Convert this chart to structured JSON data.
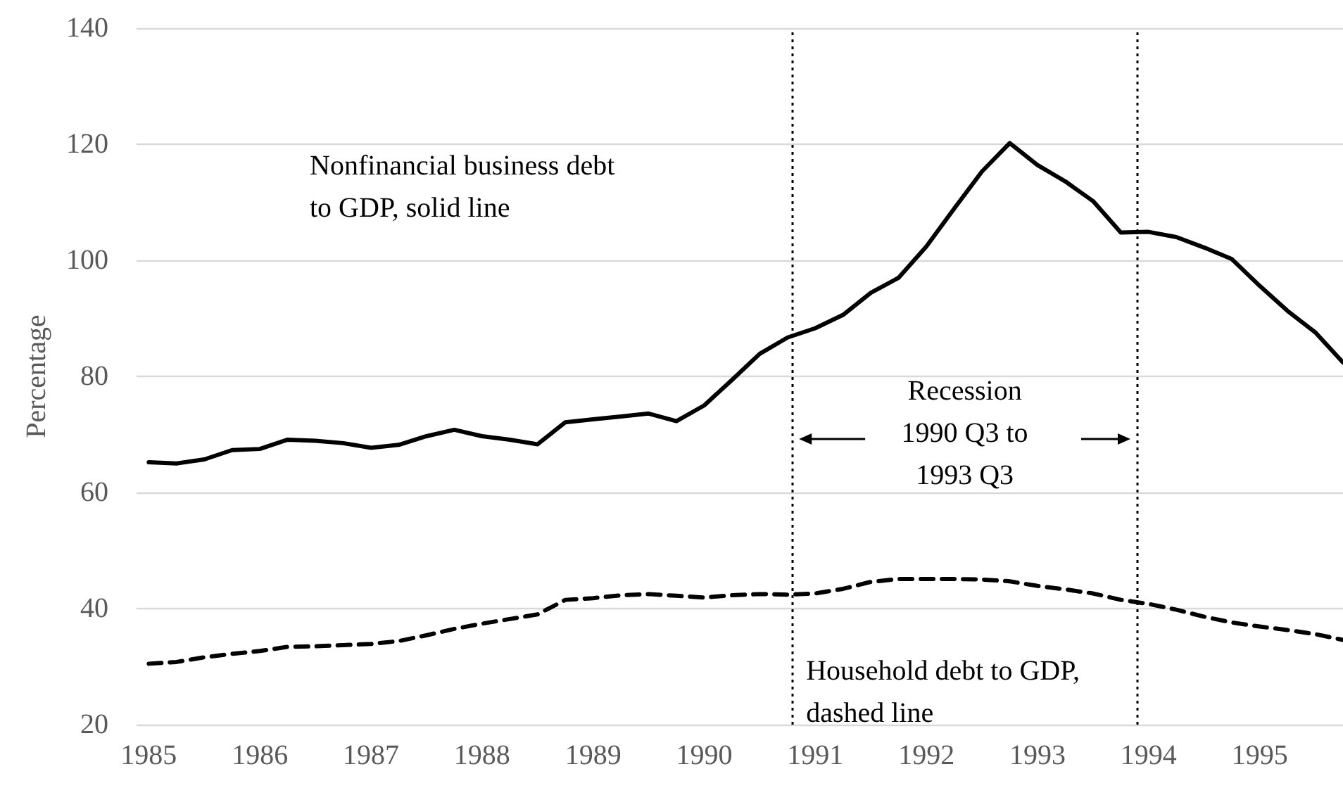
{
  "chart_data": {
    "type": "line",
    "ylabel": "Percentage",
    "x": [
      1985,
      1985.25,
      1985.5,
      1985.75,
      1986,
      1986.25,
      1986.5,
      1986.75,
      1987,
      1987.25,
      1987.5,
      1987.75,
      1988,
      1988.25,
      1988.5,
      1988.75,
      1989,
      1989.25,
      1989.5,
      1989.75,
      1990,
      1990.25,
      1990.5,
      1990.75,
      1991,
      1991.25,
      1991.5,
      1991.75,
      1992,
      1992.25,
      1992.5,
      1992.75,
      1993,
      1993.25,
      1993.5,
      1993.75,
      1994,
      1994.25,
      1994.5,
      1994.75,
      1995,
      1995.25,
      1995.5,
      1995.75
    ],
    "series": [
      {
        "color": "#000000",
        "line_style": "solid",
        "values": [
          65.2,
          65.0,
          65.7,
          67.3,
          67.5,
          69.1,
          68.9,
          68.5,
          67.7,
          68.2,
          69.7,
          70.8,
          69.7,
          69.1,
          68.3,
          72.1,
          72.6,
          73.1,
          73.6,
          72.3,
          75.0,
          79.4,
          83.9,
          86.7,
          88.3,
          90.6,
          94.4,
          97.0,
          102.4,
          108.9,
          115.3,
          120.2,
          116.4,
          113.6,
          110.2,
          104.8,
          104.9,
          104.0,
          102.2,
          100.2,
          95.6,
          91.3,
          87.6,
          82.4
        ]
      },
      {
        "color": "#000000",
        "line_style": "dashed",
        "values": [
          30.5,
          30.8,
          31.6,
          32.2,
          32.7,
          33.4,
          33.5,
          33.7,
          33.9,
          34.4,
          35.4,
          36.5,
          37.4,
          38.2,
          39.0,
          41.5,
          41.8,
          42.3,
          42.5,
          42.2,
          41.9,
          42.3,
          42.5,
          42.4,
          42.6,
          43.4,
          44.6,
          45.1,
          45.1,
          45.1,
          45.0,
          44.7,
          43.9,
          43.3,
          42.6,
          41.5,
          40.8,
          39.8,
          38.6,
          37.6,
          36.9,
          36.3,
          35.6,
          34.6
        ]
      }
    ],
    "xlim": [
      1984.89,
      1995.75
    ],
    "xticks": [
      1985,
      1986,
      1987,
      1988,
      1989,
      1990,
      1991,
      1992,
      1993,
      1994,
      1995
    ],
    "ylim": [
      20,
      140
    ],
    "yticks": [
      20,
      40,
      60,
      80,
      100,
      120,
      140
    ],
    "ref_lines": [
      {
        "axis": "x",
        "value": 1990.79,
        "color": "#000000",
        "line_style": "dotted"
      },
      {
        "axis": "x",
        "value": 1993.9,
        "color": "#000000",
        "line_style": "dotted"
      }
    ],
    "annotations": [
      "Nonfinancial business debt\nto GDP, solid line",
      "Recession\n1990 Q3 to\n1993 Q3",
      "Household debt to GDP,\ndashed line"
    ],
    "grid": "y",
    "marker": "none"
  }
}
